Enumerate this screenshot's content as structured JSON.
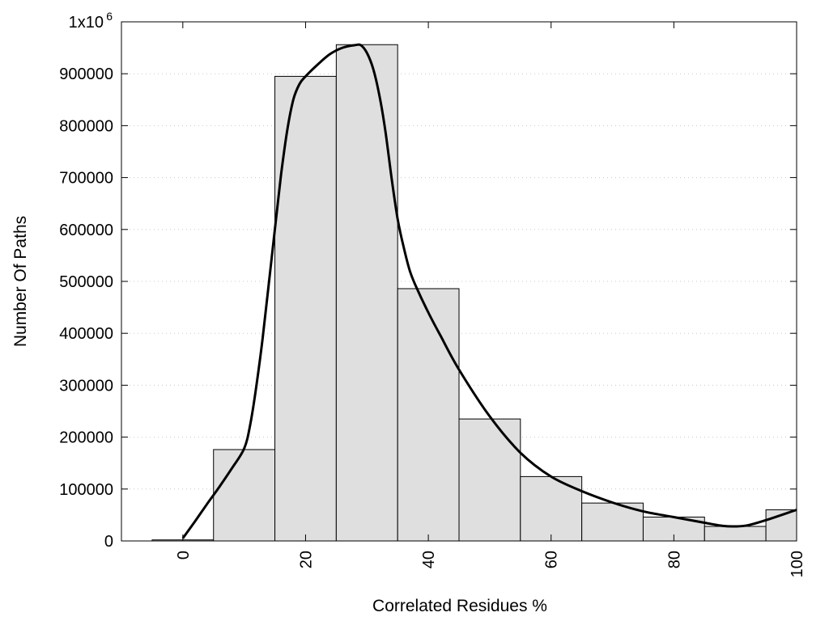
{
  "chart_data": {
    "type": "bar",
    "title": "",
    "xlabel": "Correlated Residues %",
    "ylabel": "Number Of Paths",
    "xlim": [
      -10,
      100
    ],
    "ylim": [
      0,
      1000000
    ],
    "x_ticks": [
      0,
      20,
      40,
      60,
      80,
      100
    ],
    "x_tick_labels": [
      "0",
      "20",
      "40",
      "60",
      "80",
      "100"
    ],
    "y_ticks": [
      0,
      100000,
      200000,
      300000,
      400000,
      500000,
      600000,
      700000,
      800000,
      900000,
      1000000
    ],
    "y_tick_labels": [
      "0",
      "100000",
      "200000",
      "300000",
      "400000",
      "500000",
      "600000",
      "700000",
      "800000",
      "900000",
      "1x10"
    ],
    "y_top_label_exponent": "6",
    "grid": true,
    "legend": "none",
    "bar_width": 10,
    "bar_color": "#dfdfdf",
    "bars": {
      "x": [
        0,
        10,
        20,
        30,
        40,
        50,
        60,
        70,
        80,
        90,
        100
      ],
      "values": [
        2000,
        176000,
        895000,
        956000,
        486000,
        235000,
        124000,
        73000,
        46000,
        28000,
        60000
      ]
    },
    "curve": {
      "x": [
        0,
        2,
        4,
        6,
        8,
        10,
        11,
        12,
        13,
        14,
        15,
        16,
        17,
        18,
        19,
        20,
        22,
        24,
        26,
        28,
        29,
        30,
        31,
        32,
        33,
        34,
        35,
        36,
        37,
        38,
        40,
        42,
        45,
        50,
        55,
        60,
        65,
        70,
        75,
        80,
        85,
        88,
        90,
        92,
        95,
        100
      ],
      "values": [
        5000,
        38000,
        72000,
        105000,
        140000,
        178000,
        225000,
        300000,
        390000,
        495000,
        600000,
        705000,
        790000,
        850000,
        880000,
        895000,
        918000,
        938000,
        950000,
        955000,
        955000,
        940000,
        910000,
        860000,
        790000,
        700000,
        620000,
        565000,
        520000,
        490000,
        440000,
        395000,
        330000,
        240000,
        170000,
        124000,
        96000,
        74000,
        57000,
        46000,
        35000,
        29000,
        28000,
        30000,
        40000,
        60000
      ]
    }
  }
}
